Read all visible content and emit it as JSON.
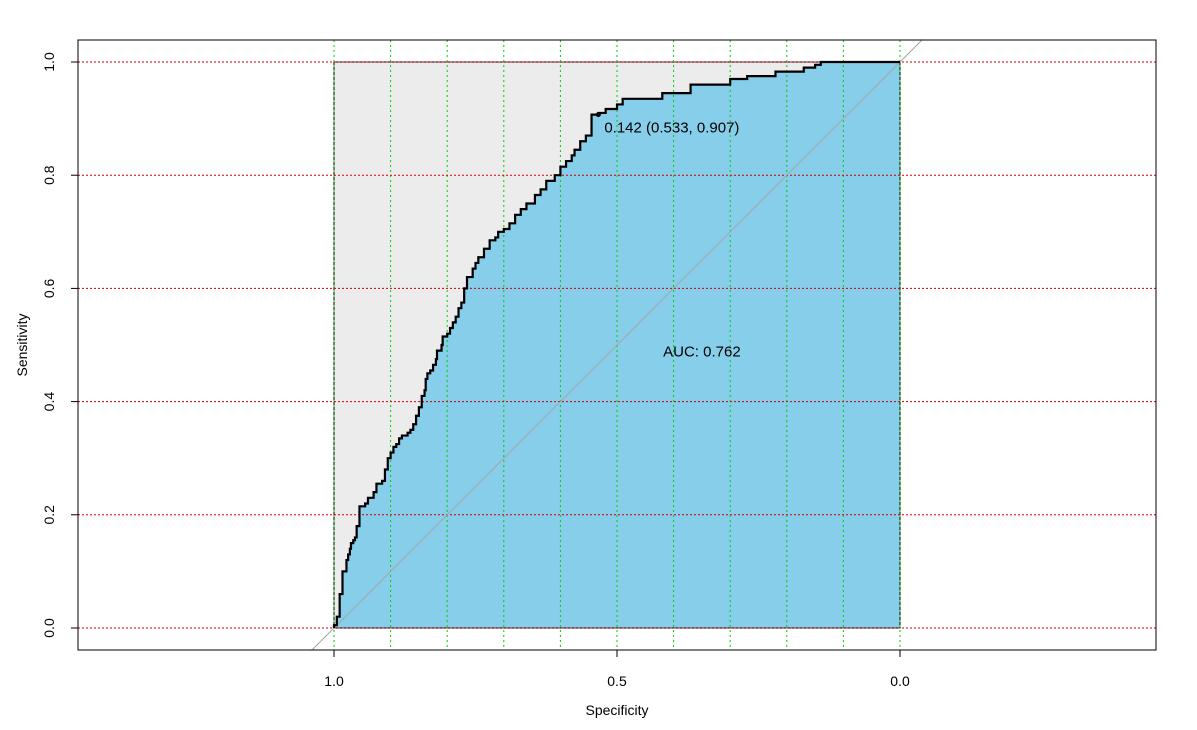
{
  "chart_data": {
    "type": "line",
    "subtype": "roc-curve",
    "xlabel": "Specificity",
    "ylabel": "Sensitivity",
    "x_reversed": true,
    "xlim": [
      1.45,
      -0.45
    ],
    "ylim": [
      0,
      1
    ],
    "x_ticks": [
      1.0,
      0.5,
      0.0
    ],
    "x_tick_labels": [
      "1.0",
      "0.5",
      "0.0"
    ],
    "y_ticks": [
      0.0,
      0.2,
      0.4,
      0.6,
      0.8,
      1.0
    ],
    "y_tick_labels": [
      "0.0",
      "0.2",
      "0.4",
      "0.6",
      "0.8",
      "1.0"
    ],
    "grid": {
      "vertical": [
        1.0,
        0.9,
        0.8,
        0.7,
        0.6,
        0.5,
        0.4,
        0.3,
        0.2,
        0.1,
        0.0
      ],
      "horizontal": [
        0.0,
        0.2,
        0.4,
        0.6,
        0.8,
        1.0
      ],
      "vertical_color": "#00cc00",
      "horizontal_color": "#cc0000"
    },
    "auc": 0.762,
    "auc_label": "AUC: 0.762",
    "auc_label_pos": {
      "spec": 0.35,
      "sens": 0.48
    },
    "best_threshold": {
      "threshold": 0.142,
      "specificity": 0.533,
      "sensitivity": 0.907
    },
    "best_label": "0.142 (0.533, 0.907)",
    "colors": {
      "auc_fill": "#87ceeb",
      "background_fill": "#ececec",
      "curve": "#000000",
      "diagonal": "#a6a6a6"
    },
    "series": [
      {
        "specificity": [
          1.0,
          0.995,
          0.995,
          0.99,
          0.99,
          0.985,
          0.985,
          0.978,
          0.975,
          0.972,
          0.97,
          0.966,
          0.963,
          0.96,
          0.955,
          0.945,
          0.94,
          0.94,
          0.93,
          0.925,
          0.925,
          0.915,
          0.91,
          0.905,
          0.9,
          0.895,
          0.89,
          0.885,
          0.88,
          0.87,
          0.865,
          0.86,
          0.855,
          0.85,
          0.845,
          0.84,
          0.838,
          0.835,
          0.83,
          0.825,
          0.82,
          0.818,
          0.81,
          0.808,
          0.8,
          0.795,
          0.79,
          0.785,
          0.78,
          0.775,
          0.77,
          0.765,
          0.755,
          0.75,
          0.745,
          0.735,
          0.725,
          0.715,
          0.71,
          0.7,
          0.69,
          0.68,
          0.67,
          0.66,
          0.645,
          0.635,
          0.625,
          0.61,
          0.6,
          0.59,
          0.58,
          0.575,
          0.565,
          0.555,
          0.545,
          0.533,
          0.52,
          0.5,
          0.49,
          0.45,
          0.42,
          0.37,
          0.36,
          0.3,
          0.27,
          0.22,
          0.17,
          0.15,
          0.14,
          0.0
        ],
        "sensitivity": [
          0.0,
          0.005,
          0.015,
          0.02,
          0.05,
          0.06,
          0.08,
          0.1,
          0.12,
          0.13,
          0.14,
          0.15,
          0.155,
          0.16,
          0.18,
          0.215,
          0.22,
          0.225,
          0.23,
          0.24,
          0.25,
          0.255,
          0.26,
          0.28,
          0.3,
          0.31,
          0.32,
          0.325,
          0.335,
          0.34,
          0.345,
          0.35,
          0.36,
          0.375,
          0.39,
          0.41,
          0.42,
          0.44,
          0.45,
          0.455,
          0.465,
          0.475,
          0.49,
          0.5,
          0.515,
          0.52,
          0.53,
          0.54,
          0.55,
          0.565,
          0.575,
          0.6,
          0.62,
          0.635,
          0.645,
          0.655,
          0.67,
          0.685,
          0.69,
          0.7,
          0.705,
          0.715,
          0.73,
          0.74,
          0.75,
          0.765,
          0.775,
          0.79,
          0.8,
          0.815,
          0.825,
          0.835,
          0.845,
          0.86,
          0.87,
          0.907,
          0.91,
          0.917,
          0.925,
          0.935,
          0.935,
          0.945,
          0.96,
          0.96,
          0.97,
          0.975,
          0.983,
          0.99,
          0.995,
          1.0
        ]
      }
    ]
  }
}
